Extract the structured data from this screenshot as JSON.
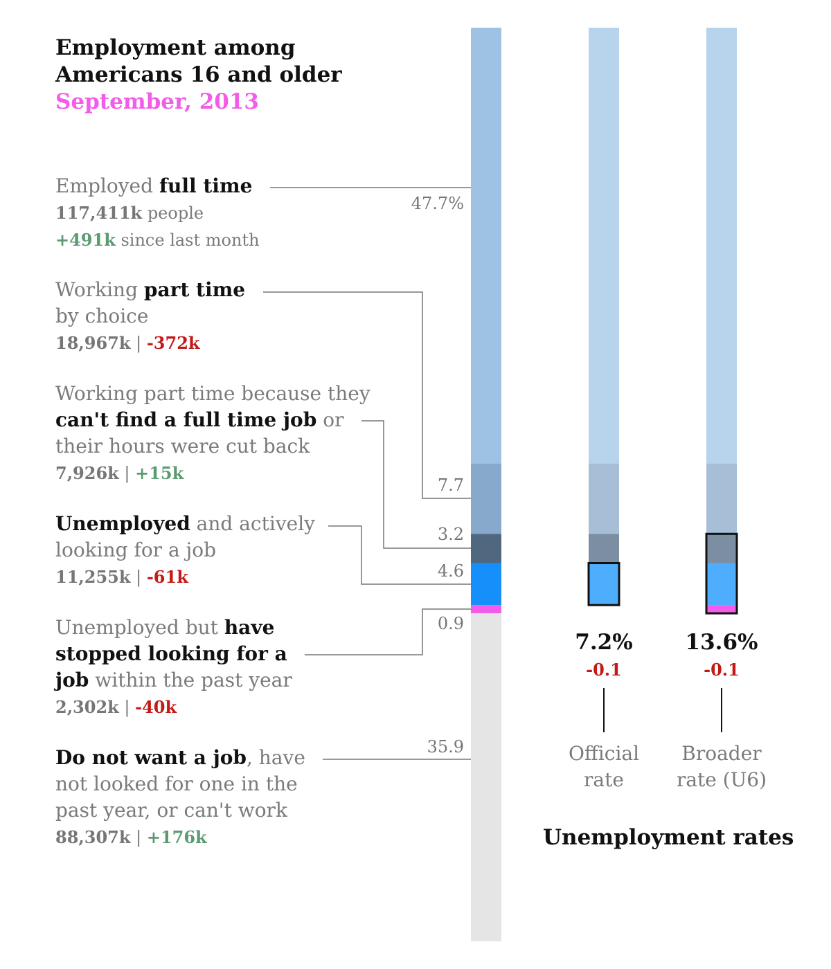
{
  "chart_data": {
    "type": "bar",
    "title": "Employment among Americans 16 and older",
    "subtitle": "September, 2013",
    "categories": [
      "Employed full time",
      "Working part time by choice",
      "Working part time because they can't find a full time job or their hours were cut back",
      "Unemployed and actively looking for a job",
      "Unemployed but have stopped looking for a job within the past year",
      "Do not want a job, have not looked for one in the past year, or can't work"
    ],
    "series": [
      {
        "values": [
          47.7,
          7.7,
          3.2,
          4.6,
          0.9,
          35.9
        ]
      }
    ],
    "people_k": [
      "117,411k",
      "18,967k",
      "7,926k",
      "11,255k",
      "2,302k",
      "88,307k"
    ],
    "monthly_change_k": [
      "+491k",
      "-372k",
      "+15k",
      "-61k",
      "-40k",
      "+176k"
    ],
    "segment_colors": [
      "#9dc2e4",
      "#87a9cb",
      "#4f6880",
      "#168ffb",
      "#f25ce8",
      "#e5e5e5"
    ],
    "pct_labels": [
      "47.7%",
      "7.7",
      "3.2",
      "4.6",
      "0.9",
      "35.9"
    ],
    "unemployment_rates": {
      "title": "Unemployment rates",
      "rates": [
        {
          "label_line1": "Official",
          "label_line2": "rate",
          "value": "7.2%",
          "change": "-0.1"
        },
        {
          "label_line1": "Broader",
          "label_line2": "rate (U6)",
          "value": "13.6%",
          "change": "-0.1"
        }
      ]
    }
  },
  "labels": {
    "title_line1": "Employment among",
    "title_line2": "Americans 16 and older",
    "subtitle": "September, 2013",
    "ft": {
      "pre": "Employed ",
      "bold": "full time",
      "num": "117,411k",
      "num_suffix": " people",
      "chg": "+491k",
      "chg_suffix": " since last month"
    },
    "pt": {
      "pre": "Working ",
      "bold": "part time",
      "line2": "by choice",
      "num": "18,967k",
      "sep": " | ",
      "chg": "-372k"
    },
    "ptec": {
      "line1": "Working part time because they",
      "bold": "can't find a full time job",
      "post": " or",
      "line3": "their hours were cut back",
      "num": "7,926k",
      "sep": " | ",
      "chg": "+15k"
    },
    "unemp": {
      "bold": "Unemployed",
      "post": " and actively",
      "line2": "looking for a job",
      "num": "11,255k",
      "sep": " | ",
      "chg": "-61k"
    },
    "disc": {
      "pre": "Unemployed but ",
      "bold1": "have",
      "bold2": "stopped looking for a",
      "bold3": "job",
      "post": " within the past year",
      "num": "2,302k",
      "sep": " | ",
      "chg": "-40k"
    },
    "nlf": {
      "bold": "Do not want a job",
      "post": ", have",
      "line2": "not looked for one in the",
      "line3": "past year, or can't work",
      "num": "88,307k",
      "sep": " | ",
      "chg": "+176k"
    }
  }
}
